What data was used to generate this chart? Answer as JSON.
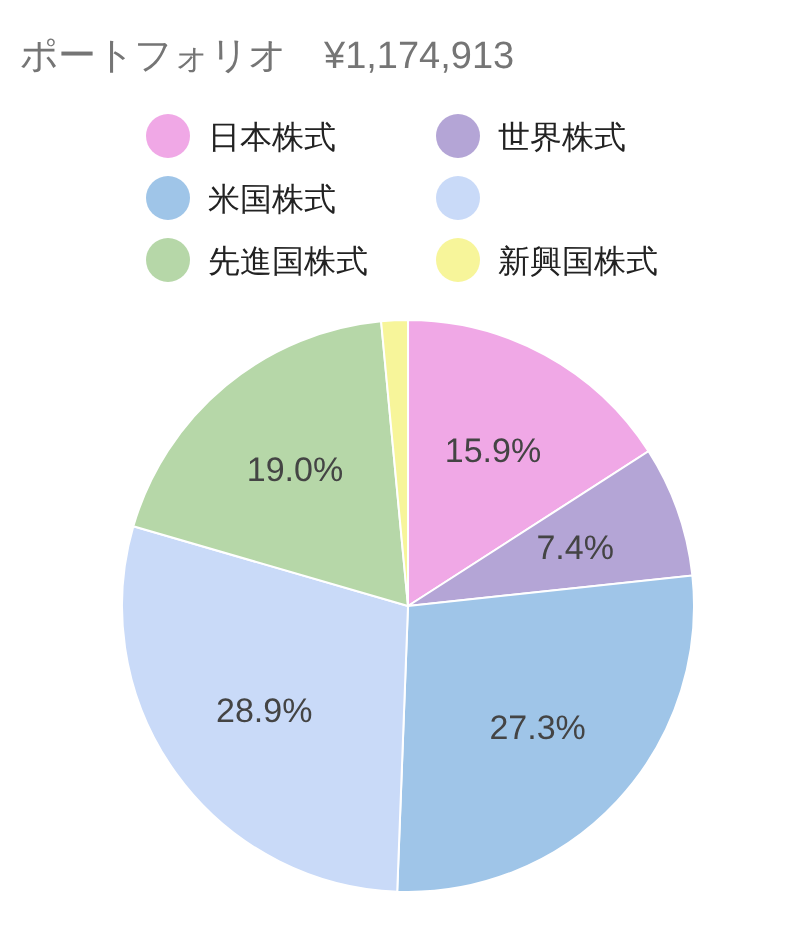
{
  "chart_data": {
    "type": "pie",
    "title": "ポートフォリオ　¥1,174,913",
    "categories": [
      "日本株式",
      "世界株式",
      "米国株式",
      null,
      "先進国株式",
      "新興国株式"
    ],
    "values": [
      15.9,
      7.4,
      27.3,
      28.9,
      19.0,
      1.5
    ],
    "value_labels": [
      "15.9%",
      "7.4%",
      "27.3%",
      "28.9%",
      "19.0%",
      null
    ],
    "colors": [
      "#f0a8e6",
      "#b4a5d6",
      "#9fc5e8",
      "#c9daf8",
      "#b6d7a8",
      "#f7f59a"
    ],
    "legend": "top"
  }
}
